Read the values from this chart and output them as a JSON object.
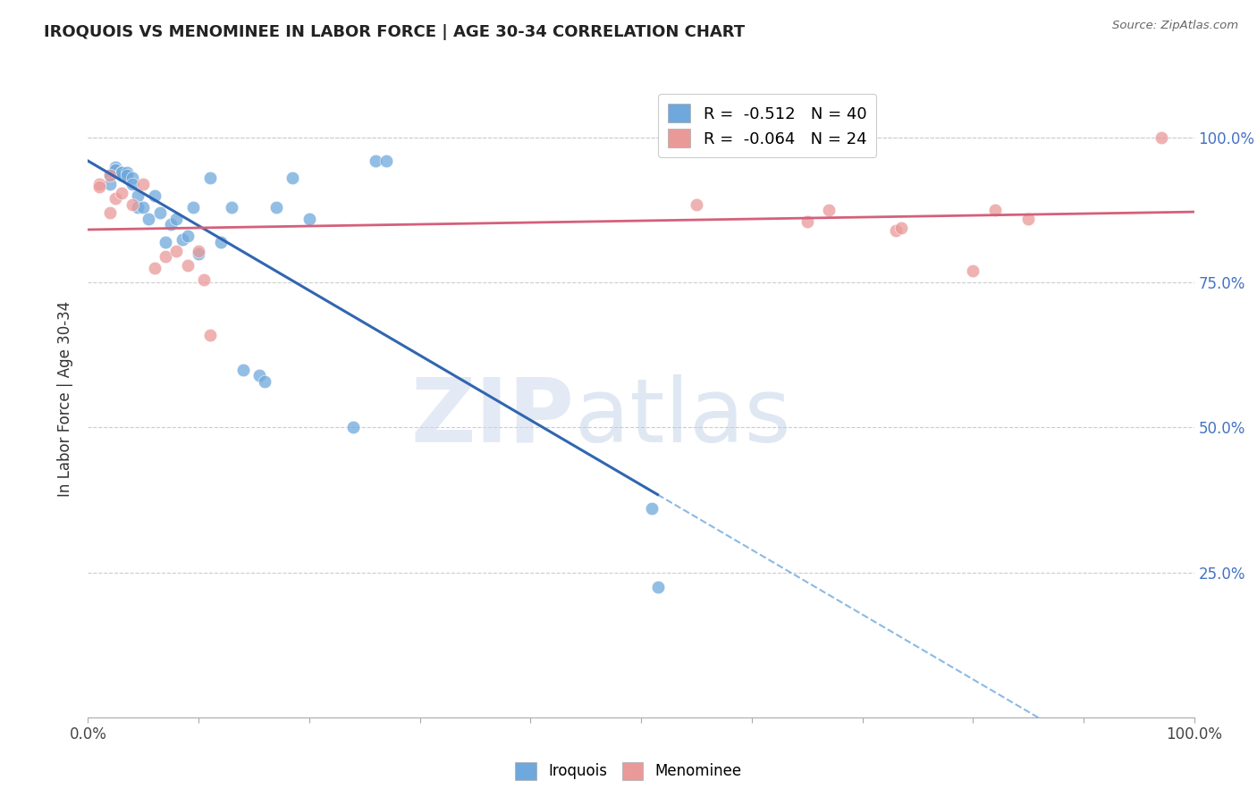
{
  "title": "IROQUOIS VS MENOMINEE IN LABOR FORCE | AGE 30-34 CORRELATION CHART",
  "source": "Source: ZipAtlas.com",
  "ylabel": "In Labor Force | Age 30-34",
  "ytick_labels": [
    "100.0%",
    "75.0%",
    "50.0%",
    "25.0%"
  ],
  "ytick_values": [
    1.0,
    0.75,
    0.5,
    0.25
  ],
  "legend_blue_r": "-0.512",
  "legend_blue_n": "40",
  "legend_pink_r": "-0.064",
  "legend_pink_n": "24",
  "blue_color": "#6fa8dc",
  "pink_color": "#ea9999",
  "blue_line_color": "#3166b0",
  "pink_line_color": "#d4607a",
  "iroquois_x": [
    0.02,
    0.02,
    0.025,
    0.025,
    0.025,
    0.03,
    0.03,
    0.03,
    0.03,
    0.035,
    0.035,
    0.04,
    0.04,
    0.045,
    0.045,
    0.05,
    0.055,
    0.06,
    0.065,
    0.07,
    0.075,
    0.08,
    0.085,
    0.09,
    0.095,
    0.1,
    0.11,
    0.12,
    0.13,
    0.14,
    0.155,
    0.16,
    0.17,
    0.185,
    0.2,
    0.24,
    0.26,
    0.27,
    0.51,
    0.515
  ],
  "iroquois_y": [
    0.935,
    0.92,
    0.95,
    0.945,
    0.945,
    0.94,
    0.94,
    0.935,
    0.94,
    0.94,
    0.935,
    0.93,
    0.92,
    0.9,
    0.88,
    0.88,
    0.86,
    0.9,
    0.87,
    0.82,
    0.85,
    0.86,
    0.825,
    0.83,
    0.88,
    0.8,
    0.93,
    0.82,
    0.88,
    0.6,
    0.59,
    0.58,
    0.88,
    0.93,
    0.86,
    0.5,
    0.96,
    0.96,
    0.36,
    0.225
  ],
  "menominee_x": [
    0.01,
    0.01,
    0.02,
    0.02,
    0.025,
    0.03,
    0.04,
    0.05,
    0.06,
    0.07,
    0.08,
    0.09,
    0.1,
    0.105,
    0.11,
    0.55,
    0.65,
    0.67,
    0.73,
    0.735,
    0.8,
    0.82,
    0.85,
    0.97
  ],
  "menominee_y": [
    0.92,
    0.915,
    0.935,
    0.87,
    0.895,
    0.905,
    0.885,
    0.92,
    0.775,
    0.795,
    0.805,
    0.78,
    0.805,
    0.755,
    0.66,
    0.885,
    0.855,
    0.875,
    0.84,
    0.845,
    0.77,
    0.875,
    0.86,
    1.0
  ]
}
